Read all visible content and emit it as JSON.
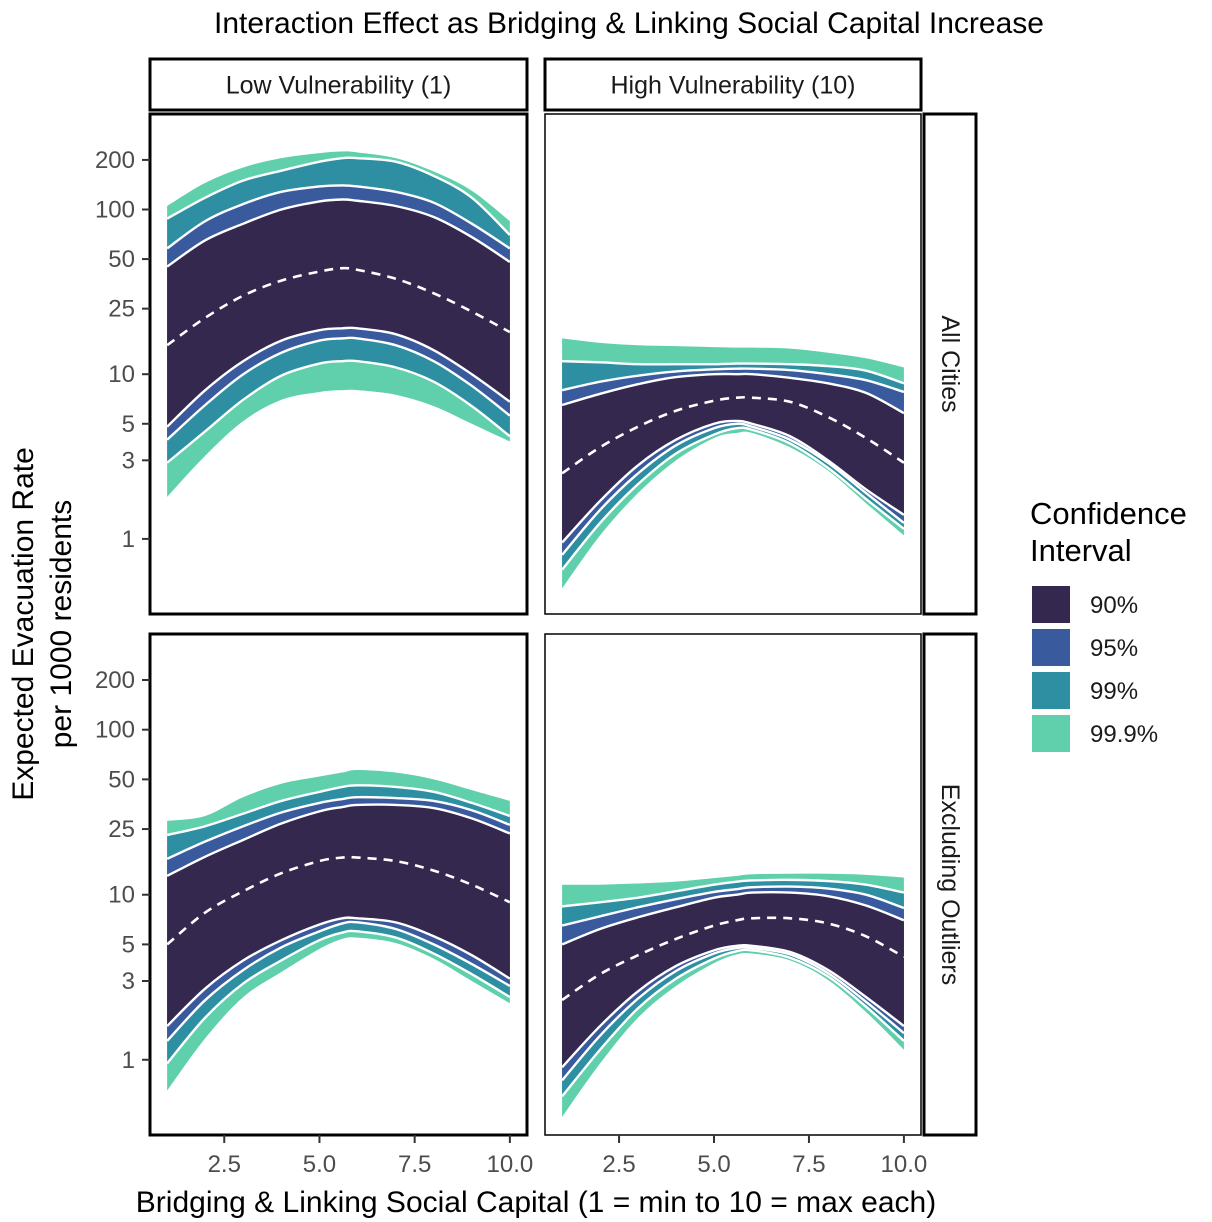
{
  "chart_data": {
    "type": "area",
    "title": "Interaction Effect as Bridging & Linking Social Capital Increase",
    "xlabel": "Bridging & Linking Social Capital (1 = min to 10 = max each)",
    "ylabel": [
      "Expected Evacuation Rate",
      "per 1000 residents"
    ],
    "y_scale": "log",
    "ylim": [
      0.35,
      380
    ],
    "xlim": [
      0.55,
      10.45
    ],
    "x_ticks": [
      2.5,
      5.0,
      7.5,
      10.0
    ],
    "x_tick_labels": [
      "2.5",
      "5.0",
      "7.5",
      "10.0"
    ],
    "y_ticks": [
      1,
      3,
      5,
      10,
      25,
      50,
      100,
      200
    ],
    "y_tick_labels": [
      "1",
      "3",
      "5",
      "10",
      "25",
      "50",
      "100",
      "200"
    ],
    "x": [
      1,
      2,
      3,
      4,
      5,
      5.6,
      6,
      7,
      8,
      9,
      10
    ],
    "column_strips": [
      "Low Vulnerability (1)",
      "High Vulnerability (10)"
    ],
    "row_strips": [
      "All Cities",
      "Excluding Outliers"
    ],
    "legend": {
      "title": [
        "Confidence",
        "Interval"
      ],
      "placement": "right",
      "entries": [
        {
          "label": "90%",
          "color": "#35284f"
        },
        {
          "label": "95%",
          "color": "#3a5a9e"
        },
        {
          "label": "99%",
          "color": "#2e8fa3"
        },
        {
          "label": "99.9%",
          "color": "#5fd0ab"
        }
      ]
    },
    "band_outline_color": "#ffffff",
    "estimate_line": "dashed white",
    "panels": [
      {
        "row": "All Cities",
        "column": "Low Vulnerability (1)",
        "estimate": [
          15,
          22,
          30,
          37,
          42,
          44,
          43,
          38,
          31,
          24,
          18
        ],
        "bands": {
          "90%": {
            "lower": [
              4.8,
              8,
              12,
              16,
              18.5,
              19,
              19,
              17.5,
              14,
              10,
              6.8
            ],
            "upper": [
              45,
              65,
              82,
              100,
              112,
              115,
              113,
              105,
              90,
              68,
              48
            ]
          },
          "95%": {
            "lower": [
              4,
              6.5,
              10,
              13.5,
              16,
              16.5,
              16.5,
              15,
              12,
              8.5,
              5.6
            ],
            "upper": [
              58,
              85,
              108,
              128,
              138,
              140,
              138,
              128,
              110,
              82,
              58
            ]
          },
          "99%": {
            "lower": [
              2.9,
              4.5,
              7,
              9.8,
              11.6,
              12,
              12,
              11,
              9,
              6.4,
              4.2
            ],
            "upper": [
              88,
              118,
              150,
              172,
              195,
              205,
              205,
              195,
              160,
              118,
              70
            ]
          },
          "99.9%": {
            "lower": [
              1.8,
              3.2,
              5.2,
              7,
              7.8,
              8,
              8,
              7.5,
              6.4,
              5,
              3.9
            ],
            "upper": [
              105,
              145,
              180,
              205,
              220,
              225,
              222,
              205,
              170,
              130,
              85
            ]
          }
        }
      },
      {
        "row": "All Cities",
        "column": "High Vulnerability (10)",
        "estimate": [
          2.5,
          3.6,
          4.8,
          6,
          6.9,
          7.2,
          7.2,
          6.8,
          5.5,
          4.1,
          2.9
        ],
        "bands": {
          "90%": {
            "lower": [
              0.95,
              1.7,
              2.8,
              4,
              5,
              5.2,
              5,
              4.2,
              3,
              2,
              1.4
            ],
            "upper": [
              6.5,
              7.6,
              8.7,
              9.6,
              10,
              10,
              10,
              9.5,
              8.8,
              7.7,
              5.8
            ]
          },
          "95%": {
            "lower": [
              0.8,
              1.5,
              2.5,
              3.7,
              4.7,
              5,
              4.8,
              4,
              2.9,
              1.9,
              1.25
            ],
            "upper": [
              8,
              9,
              9.8,
              10.4,
              10.7,
              10.8,
              10.8,
              10.6,
              10,
              9.2,
              7.8
            ]
          },
          "99%": {
            "lower": [
              0.65,
              1.25,
              2.15,
              3.3,
              4.3,
              4.7,
              4.6,
              3.8,
              2.7,
              1.75,
              1.15
            ],
            "upper": [
              12,
              11.8,
              11.5,
              11.5,
              11.5,
              11.6,
              11.6,
              11.5,
              11.2,
              10.5,
              8.8
            ]
          },
          "99.9%": {
            "lower": [
              0.5,
              1.05,
              1.9,
              3,
              4.1,
              4.4,
              4.4,
              3.6,
              2.6,
              1.65,
              1.05
            ],
            "upper": [
              16.5,
              15.5,
              15,
              14.8,
              14.6,
              14.5,
              14.5,
              14.3,
              13.5,
              12.5,
              11
            ]
          }
        }
      },
      {
        "row": "Excluding Outliers",
        "column": "Low Vulnerability (1)",
        "estimate": [
          5,
          7.8,
          10.5,
          13.5,
          16,
          16.8,
          16.8,
          16,
          14,
          11.5,
          9
        ],
        "bands": {
          "90%": {
            "lower": [
              1.6,
              2.7,
              4,
              5.3,
              6.6,
              7.2,
              7.2,
              6.8,
              5.6,
              4.3,
              3.1
            ],
            "upper": [
              13,
              17,
              21.5,
              27,
              32,
              34,
              35,
              35,
              33.5,
              29,
              23.5
            ]
          },
          "95%": {
            "lower": [
              1.3,
              2.3,
              3.5,
              4.8,
              6,
              6.7,
              6.8,
              6.2,
              5,
              3.8,
              2.8
            ],
            "upper": [
              16.5,
              21,
              26,
              31.5,
              36,
              38,
              39,
              38.5,
              37,
              32.5,
              26.5
            ]
          },
          "99%": {
            "lower": [
              0.95,
              1.8,
              2.9,
              4,
              5.3,
              5.9,
              6,
              5.5,
              4.4,
              3.3,
              2.4
            ],
            "upper": [
              23,
              26,
              31,
              37,
              42,
              45,
              46,
              45,
              42,
              36,
              30
            ]
          },
          "99.9%": {
            "lower": [
              0.65,
              1.35,
              2.4,
              3.4,
              4.7,
              5.4,
              5.5,
              5.1,
              4.1,
              3,
              2.2
            ],
            "upper": [
              28,
              30,
              39,
              47,
              52,
              55,
              57,
              55,
              50,
              43,
              37
            ]
          }
        }
      },
      {
        "row": "Excluding Outliers",
        "column": "High Vulnerability (10)",
        "estimate": [
          2.3,
          3.3,
          4.3,
          5.4,
          6.5,
          7,
          7.2,
          7.2,
          6.7,
          5.6,
          4.2
        ],
        "bands": {
          "90%": {
            "lower": [
              0.9,
              1.6,
              2.6,
              3.7,
              4.6,
              4.9,
              4.9,
              4.5,
              3.5,
              2.4,
              1.6
            ],
            "upper": [
              5,
              6.2,
              7.3,
              8.4,
              9.6,
              10,
              10.3,
              10.3,
              9.8,
              8.6,
              7
            ]
          },
          "95%": {
            "lower": [
              0.75,
              1.4,
              2.35,
              3.45,
              4.4,
              4.75,
              4.75,
              4.35,
              3.35,
              2.25,
              1.45
            ],
            "upper": [
              6.5,
              7.4,
              8.4,
              9.4,
              10.4,
              10.8,
              11.1,
              11.2,
              10.9,
              10,
              8.3
            ]
          },
          "99%": {
            "lower": [
              0.6,
              1.15,
              2.05,
              3.1,
              4.1,
              4.55,
              4.6,
              4.15,
              3.2,
              2.1,
              1.3
            ],
            "upper": [
              8.5,
              9,
              9.6,
              10.5,
              11.5,
              12,
              12.2,
              12.3,
              12.1,
              11.5,
              10.3
            ]
          },
          "99.9%": {
            "lower": [
              0.45,
              0.95,
              1.8,
              2.8,
              3.85,
              4.35,
              4.4,
              4,
              3.05,
              1.95,
              1.15
            ],
            "upper": [
              11.5,
              11.5,
              11.7,
              12,
              12.6,
              13,
              13.3,
              13.4,
              13.4,
              13.2,
              12.7
            ]
          }
        }
      }
    ]
  }
}
